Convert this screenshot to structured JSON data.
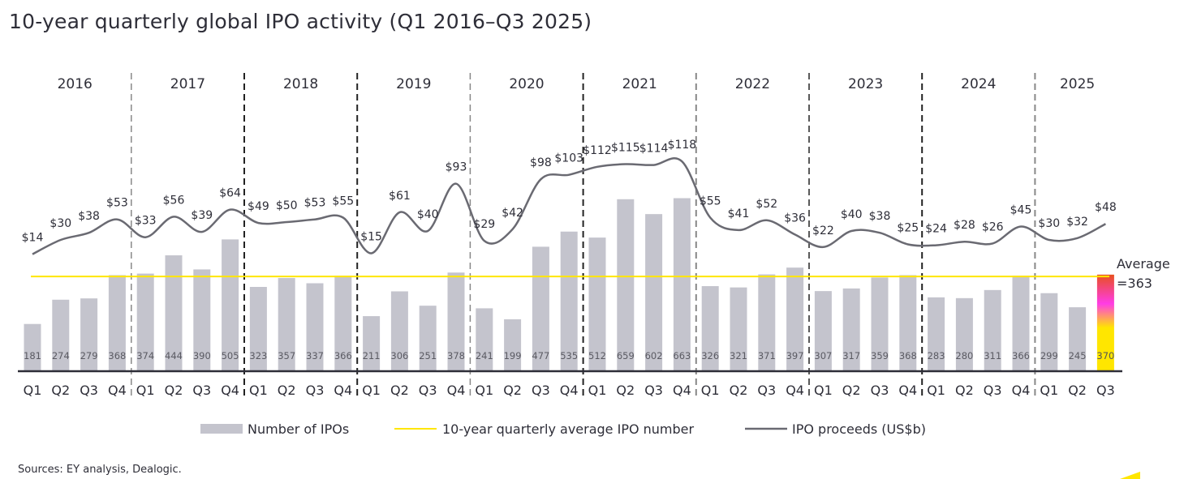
{
  "chart_data": {
    "type": "bar",
    "title": "10-year quarterly global IPO activity (Q1 2016–Q3 2025)",
    "years": [
      "2016",
      "2017",
      "2018",
      "2019",
      "2020",
      "2021",
      "2022",
      "2023",
      "2024",
      "2025"
    ],
    "quarters_per_year": [
      4,
      4,
      4,
      4,
      4,
      4,
      4,
      4,
      4,
      3
    ],
    "categories": [
      "Q1",
      "Q2",
      "Q3",
      "Q4",
      "Q1",
      "Q2",
      "Q3",
      "Q4",
      "Q1",
      "Q2",
      "Q3",
      "Q4",
      "Q1",
      "Q2",
      "Q3",
      "Q4",
      "Q1",
      "Q2",
      "Q3",
      "Q4",
      "Q1",
      "Q2",
      "Q3",
      "Q4",
      "Q1",
      "Q2",
      "Q3",
      "Q4",
      "Q1",
      "Q2",
      "Q3",
      "Q4",
      "Q1",
      "Q2",
      "Q3",
      "Q4",
      "Q1",
      "Q2",
      "Q3"
    ],
    "series": [
      {
        "name": "Number of IPOs",
        "type": "bar",
        "color": "#c4c4cd",
        "values": [
          181,
          274,
          279,
          368,
          374,
          444,
          390,
          505,
          323,
          357,
          337,
          366,
          211,
          306,
          251,
          378,
          241,
          199,
          477,
          535,
          512,
          659,
          602,
          663,
          326,
          321,
          371,
          397,
          307,
          317,
          359,
          368,
          283,
          280,
          311,
          366,
          299,
          245,
          370
        ]
      },
      {
        "name": "10-year quarterly average IPO number",
        "type": "hline",
        "color": "#ffe600",
        "value": 363
      },
      {
        "name": "IPO proceeds (US$b)",
        "type": "line",
        "color": "#6a6a72",
        "values": [
          14,
          30,
          38,
          53,
          33,
          56,
          39,
          64,
          49,
          50,
          53,
          55,
          15,
          61,
          40,
          93,
          29,
          42,
          98,
          103,
          112,
          115,
          114,
          118,
          55,
          41,
          52,
          36,
          22,
          40,
          38,
          25,
          24,
          28,
          26,
          45,
          30,
          32,
          48
        ]
      }
    ],
    "average_label": [
      "Average",
      "=363"
    ],
    "legend_placement": "bottom",
    "highlight_bar_gradient": [
      "#ffe600",
      "#ff3ce6",
      "#e8501e"
    ]
  },
  "sources": "Sources: EY analysis, Dealogic."
}
